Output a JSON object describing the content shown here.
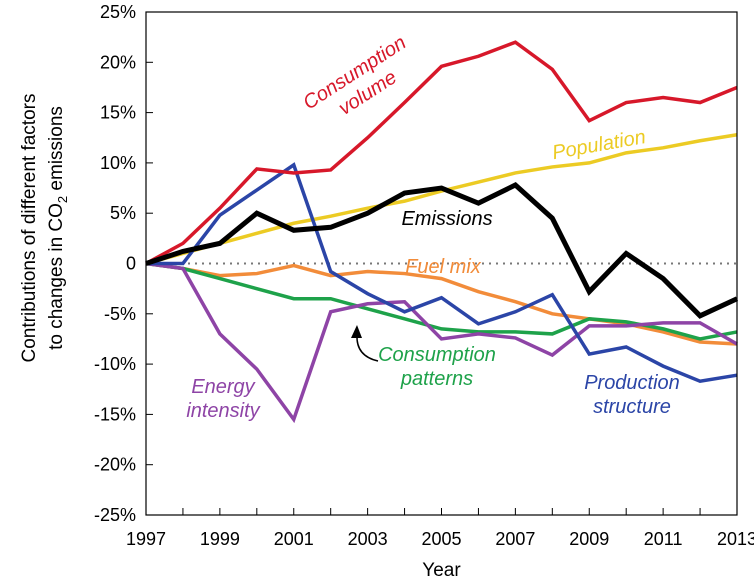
{
  "chart_data": {
    "type": "line",
    "title": "",
    "xlabel": "Year",
    "ylabel_line1": "Contributions of different factors",
    "ylabel_line2_prefix": "to changes in CO",
    "ylabel_line2_sub": "2",
    "ylabel_line2_suffix": " emissions",
    "xlim": [
      1997,
      2013
    ],
    "ylim": [
      -25,
      25
    ],
    "x_ticks": [
      "1997",
      "1999",
      "2001",
      "2003",
      "2005",
      "2007",
      "2009",
      "2011",
      "2013"
    ],
    "y_ticks": [
      "25%",
      "20%",
      "15%",
      "10%",
      "5%",
      "0",
      "-5%",
      "-10%",
      "-15%",
      "-20%",
      "-25%"
    ],
    "zero_reference_line": "dotted",
    "grid": false,
    "x": [
      1997,
      1998,
      1999,
      2000,
      2001,
      2002,
      2003,
      2004,
      2005,
      2006,
      2007,
      2008,
      2009,
      2010,
      2011,
      2012,
      2013
    ],
    "series": [
      {
        "name": "Consumption volume",
        "label_lines": [
          "Consumption",
          "volume"
        ],
        "color": "#d7182a",
        "values": [
          0,
          2,
          5.5,
          9.4,
          9,
          9.3,
          12.5,
          16,
          19.6,
          20.6,
          22,
          19.3,
          14.2,
          16,
          16.5,
          16,
          17.5
        ]
      },
      {
        "name": "Population",
        "label_lines": [
          "Population"
        ],
        "color": "#eccb24",
        "values": [
          0,
          1,
          2,
          3,
          4,
          4.7,
          5.5,
          6.2,
          7.2,
          8.1,
          9,
          9.6,
          10,
          11,
          11.5,
          12.2,
          12.8
        ]
      },
      {
        "name": "Emissions",
        "label_lines": [
          "Emissions"
        ],
        "color": "#000000",
        "values": [
          0,
          1.2,
          2,
          5,
          3.3,
          3.6,
          5,
          7,
          7.5,
          6,
          7.8,
          4.5,
          -2.8,
          1,
          -1.5,
          -5.2,
          -3.5
        ]
      },
      {
        "name": "Fuel mix",
        "label_lines": [
          "Fuel mix"
        ],
        "color": "#f28c3a",
        "values": [
          0,
          -0.5,
          -1.2,
          -1,
          -0.2,
          -1.2,
          -0.8,
          -1,
          -1.5,
          -2.8,
          -3.8,
          -5,
          -5.5,
          -6,
          -6.8,
          -7.8,
          -8
        ]
      },
      {
        "name": "Consumption patterns",
        "label_lines": [
          "Consumption",
          "patterns"
        ],
        "color": "#1ea24a",
        "values": [
          0,
          -0.5,
          -1.5,
          -2.5,
          -3.5,
          -3.5,
          -4.5,
          -5.5,
          -6.5,
          -6.8,
          -6.8,
          -7,
          -5.5,
          -5.8,
          -6.5,
          -7.5,
          -6.8
        ]
      },
      {
        "name": "Production structure",
        "label_lines": [
          "Production",
          "structure"
        ],
        "color": "#2b45a7",
        "values": [
          0,
          0,
          4.8,
          7.3,
          9.8,
          -0.8,
          -3,
          -4.8,
          -3.4,
          -6,
          -4.8,
          -3.1,
          -9,
          -8.3,
          -10.2,
          -11.7,
          -11.1
        ]
      },
      {
        "name": "Energy intensity",
        "label_lines": [
          "Energy",
          "intensity"
        ],
        "color": "#8e44a6",
        "values": [
          0,
          -0.5,
          -7,
          -10.5,
          -15.5,
          -4.8,
          -4,
          -3.8,
          -7.5,
          -7,
          -7.4,
          -9.1,
          -6.2,
          -6.2,
          -5.9,
          -5.9,
          -8
        ]
      }
    ]
  }
}
